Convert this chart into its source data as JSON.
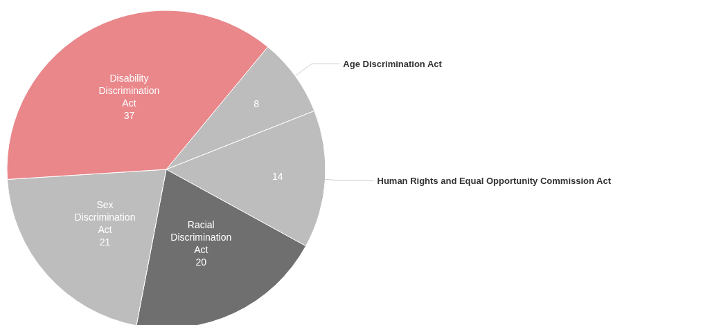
{
  "chart_data": {
    "type": "pie",
    "categories": [
      "Age Discrimination Act",
      "Human Rights and Equal Opportunity Commission Act",
      "Racial Discrimination Act",
      "Sex Discrimination Act",
      "Disability Discrimination Act"
    ],
    "values": [
      8,
      14,
      20,
      21,
      37
    ],
    "colors": [
      "#bdbdbd",
      "#bdbdbd",
      "#6f6f6f",
      "#bdbdbd",
      "#e9878b"
    ],
    "data_labels": true,
    "legend": false
  }
}
